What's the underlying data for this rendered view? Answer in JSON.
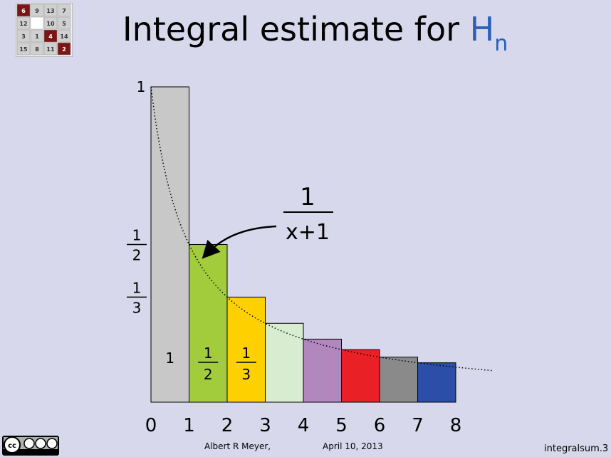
{
  "slide": {
    "title_prefix": "Integral estimate for ",
    "title_symbol": "H",
    "title_subscript": "n"
  },
  "footer": {
    "author": "Albert R Meyer,",
    "date": "April 10, 2013",
    "slide_id": "integralsum.3"
  },
  "logo": {
    "cells": [
      {
        "text": "6",
        "dark": true
      },
      {
        "text": "9",
        "dark": false
      },
      {
        "text": "13",
        "dark": false
      },
      {
        "text": "7",
        "dark": false
      },
      {
        "text": "12",
        "dark": false
      },
      {
        "text": "",
        "dark": false,
        "blank": true
      },
      {
        "text": "10",
        "dark": false
      },
      {
        "text": "5",
        "dark": false
      },
      {
        "text": "3",
        "dark": false
      },
      {
        "text": "1",
        "dark": false
      },
      {
        "text": "4",
        "dark": true
      },
      {
        "text": "14",
        "dark": false
      },
      {
        "text": "15",
        "dark": false
      },
      {
        "text": "8",
        "dark": false
      },
      {
        "text": "11",
        "dark": false
      },
      {
        "text": "2",
        "dark": true
      }
    ]
  },
  "chart_data": {
    "type": "bar",
    "x_ticks": [
      "0",
      "1",
      "2",
      "3",
      "4",
      "5",
      "6",
      "7",
      "8"
    ],
    "bars": [
      {
        "x0": 0,
        "x1": 1,
        "value": 1,
        "color": "#c8c8c8",
        "label_num": "1",
        "label_den": ""
      },
      {
        "x0": 1,
        "x1": 2,
        "value": 0.5,
        "color": "#a3cc3c",
        "label_num": "1",
        "label_den": "2"
      },
      {
        "x0": 2,
        "x1": 3,
        "value": 0.3333,
        "color": "#ffd000",
        "label_num": "1",
        "label_den": "3"
      },
      {
        "x0": 3,
        "x1": 4,
        "value": 0.25,
        "color": "#d8ecd0",
        "label_num": "",
        "label_den": ""
      },
      {
        "x0": 4,
        "x1": 5,
        "value": 0.2,
        "color": "#b187bd",
        "label_num": "",
        "label_den": ""
      },
      {
        "x0": 5,
        "x1": 6,
        "value": 0.1667,
        "color": "#ea2027",
        "label_num": "",
        "label_den": ""
      },
      {
        "x0": 6,
        "x1": 7,
        "value": 0.1429,
        "color": "#8a8a8a",
        "label_num": "",
        "label_den": ""
      },
      {
        "x0": 7,
        "x1": 8,
        "value": 0.125,
        "color": "#2b4fa8",
        "label_num": "",
        "label_den": ""
      }
    ],
    "y_labels": [
      {
        "value": 1,
        "num": "1",
        "den": ""
      },
      {
        "value": 0.5,
        "num": "1",
        "den": "2"
      },
      {
        "value": 0.3333,
        "num": "1",
        "den": "3"
      }
    ],
    "curve": {
      "formula_num": "1",
      "formula_den": "x+1",
      "x_range": [
        0,
        9
      ]
    },
    "xlim": [
      0,
      9
    ],
    "ylim": [
      0,
      1
    ]
  }
}
